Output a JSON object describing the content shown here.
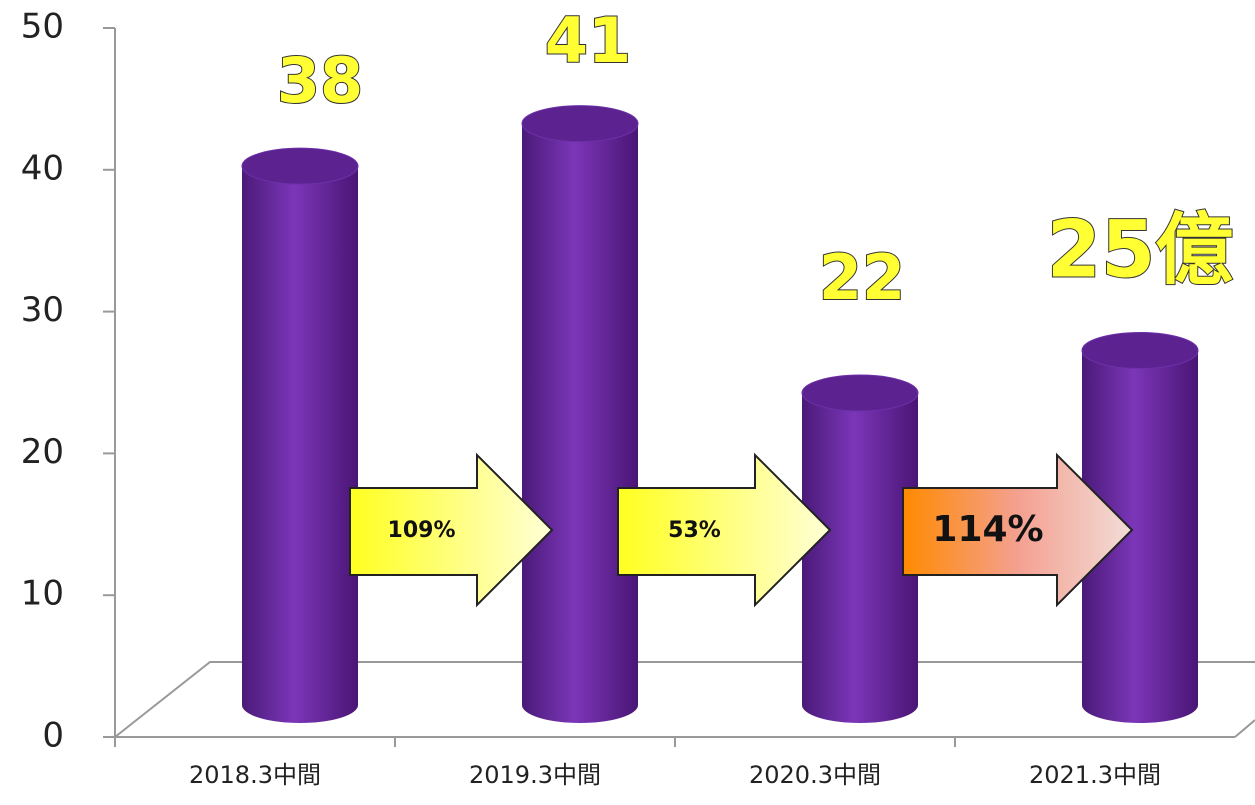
{
  "chart_data": {
    "type": "bar3d",
    "categories": [
      "2018.3中間",
      "2019.3中間",
      "2020.3中間",
      "2021.3中間"
    ],
    "values": [
      38,
      41,
      22,
      25
    ],
    "value_labels": [
      "38",
      "41",
      "22",
      "25億"
    ],
    "color": "#6a2aa3",
    "ylim": [
      0,
      50
    ],
    "yticks": [
      0,
      10,
      20,
      30,
      40,
      50
    ],
    "annotations": [
      "109%",
      "53%",
      "114%"
    ]
  }
}
